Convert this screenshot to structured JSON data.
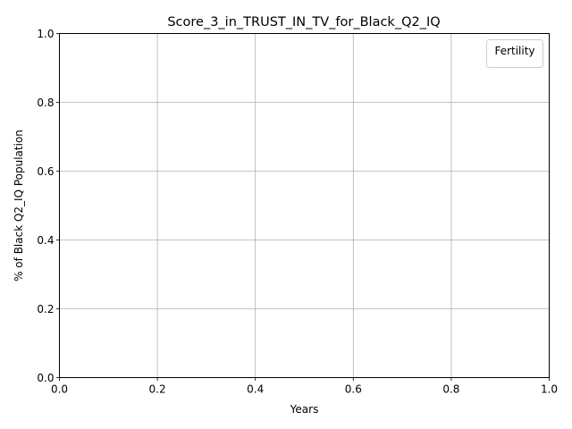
{
  "chart_data": {
    "type": "line",
    "title": "Score_3_in_TRUST_IN_TV_for_Black_Q2_IQ",
    "xlabel": "Years",
    "ylabel": "% of Black Q2_IQ Population",
    "xlim": [
      0.0,
      1.0
    ],
    "ylim": [
      0.0,
      1.0
    ],
    "x_ticks": [
      "0.0",
      "0.2",
      "0.4",
      "0.6",
      "0.8",
      "1.0"
    ],
    "y_ticks": [
      "0.0",
      "0.2",
      "0.4",
      "0.6",
      "0.8",
      "1.0"
    ],
    "grid": true,
    "legend": {
      "title": "Fertility",
      "placement": "top-right",
      "entries": []
    },
    "series": []
  }
}
